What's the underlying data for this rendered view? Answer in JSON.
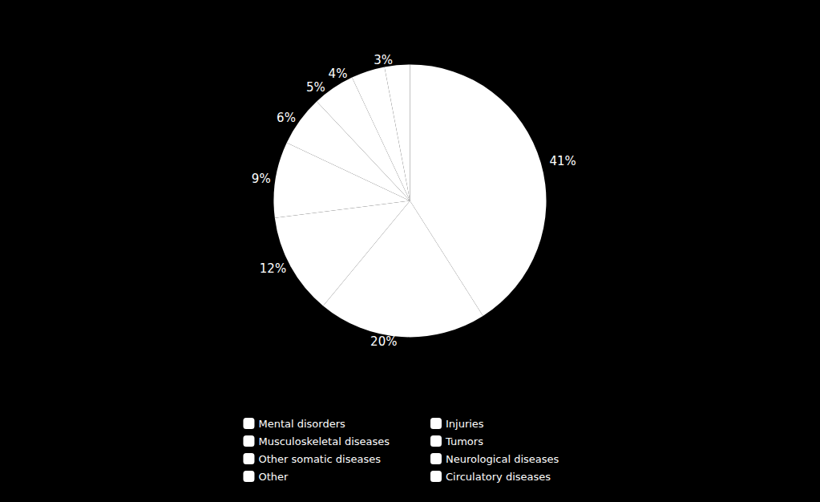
{
  "chart_data": {
    "type": "pie",
    "categories": [
      "Mental disorders",
      "Musculoskeletal diseases",
      "Other somatic diseases",
      "Other",
      "Injuries",
      "Tumors",
      "Neurological diseases",
      "Circulatory diseases"
    ],
    "values": [
      41,
      20,
      12,
      9,
      6,
      5,
      4,
      3
    ],
    "value_labels": [
      "41%",
      "20%",
      "12%",
      "9%",
      "6%",
      "5%",
      "4%",
      "3%"
    ],
    "color": "#ffffff",
    "data_labels": true,
    "legend": "bottom"
  }
}
